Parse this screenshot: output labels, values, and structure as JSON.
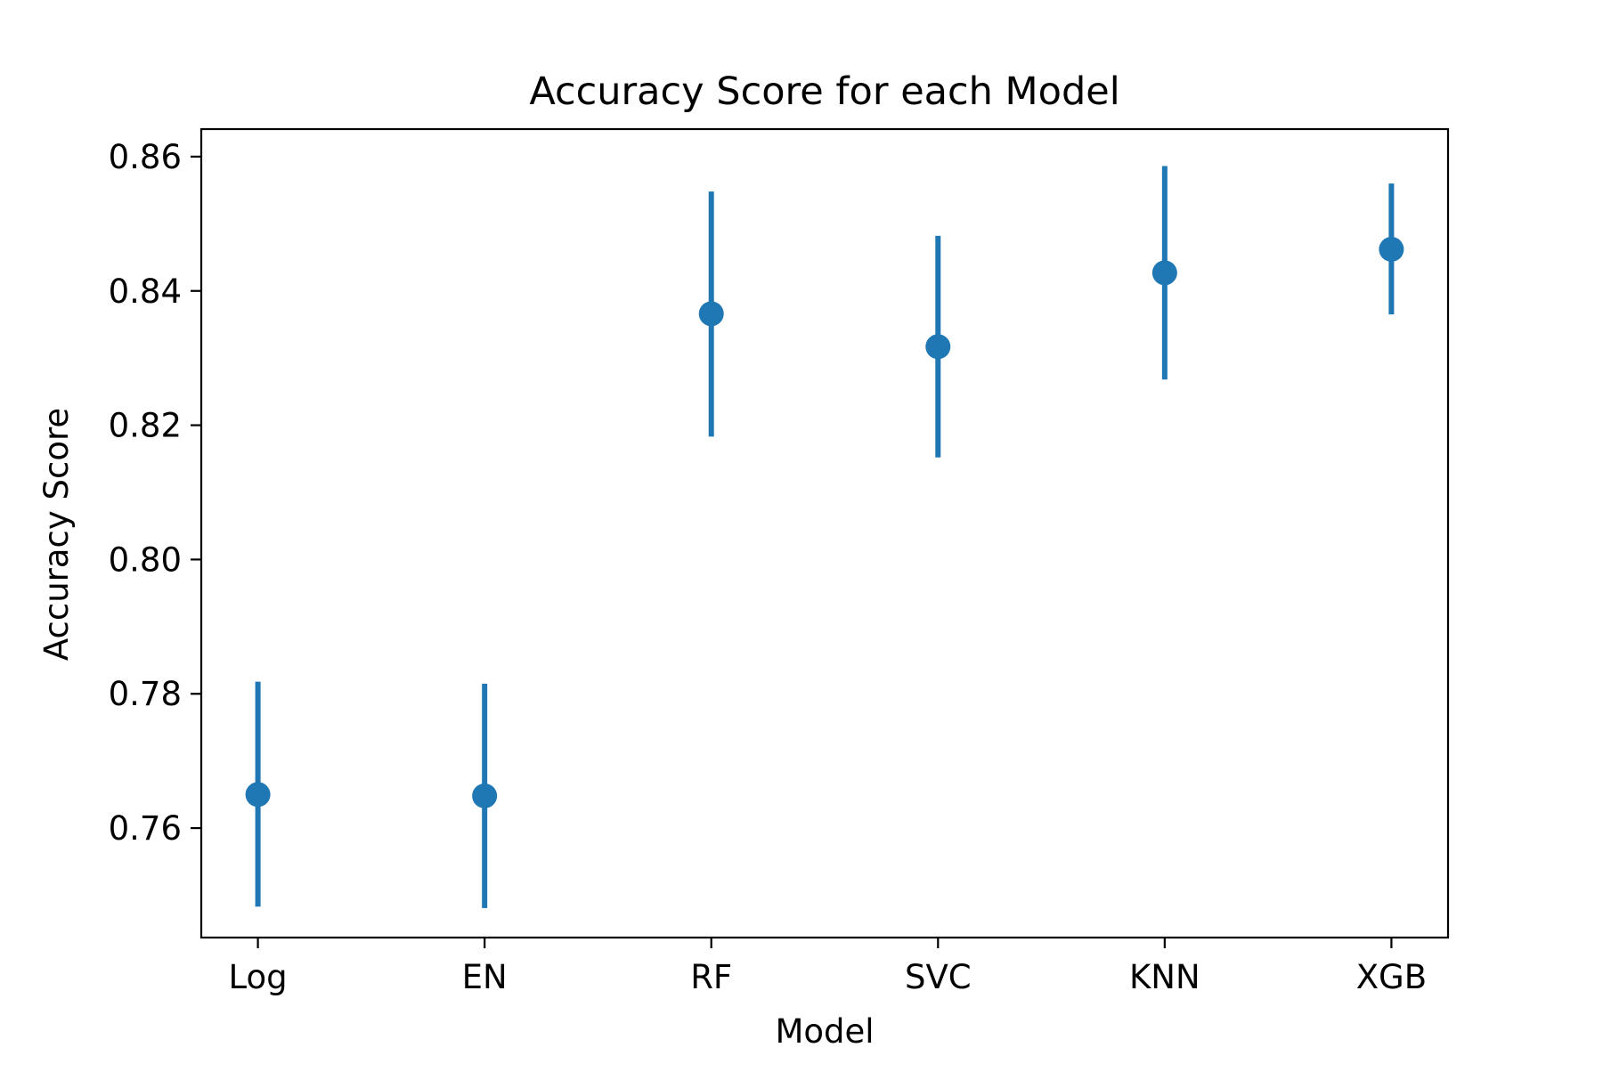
{
  "chart_data": {
    "type": "scatter",
    "title": "Accuracy Score for each Model",
    "xlabel": "Model",
    "ylabel": "Accuracy Score",
    "categories": [
      "Log",
      "EN",
      "RF",
      "SVC",
      "KNN",
      "XGB"
    ],
    "series": [
      {
        "values": [
          0.765,
          0.7648,
          0.8366,
          0.8317,
          0.8427,
          0.8462
        ],
        "err_low": [
          0.7483,
          0.7481,
          0.8183,
          0.8152,
          0.8268,
          0.8365
        ],
        "err_high": [
          0.7818,
          0.7815,
          0.8548,
          0.8482,
          0.8586,
          0.856
        ]
      }
    ],
    "ylim": [
      0.7437,
      0.8641
    ],
    "yticks": [
      "0.76",
      "0.78",
      "0.80",
      "0.82",
      "0.84",
      "0.86"
    ],
    "ytick_values": [
      0.76,
      0.78,
      0.8,
      0.82,
      0.84,
      0.86
    ],
    "grid": false,
    "legend": "none",
    "colors": {
      "series": "#1f77b4",
      "axes": "#000000"
    }
  }
}
